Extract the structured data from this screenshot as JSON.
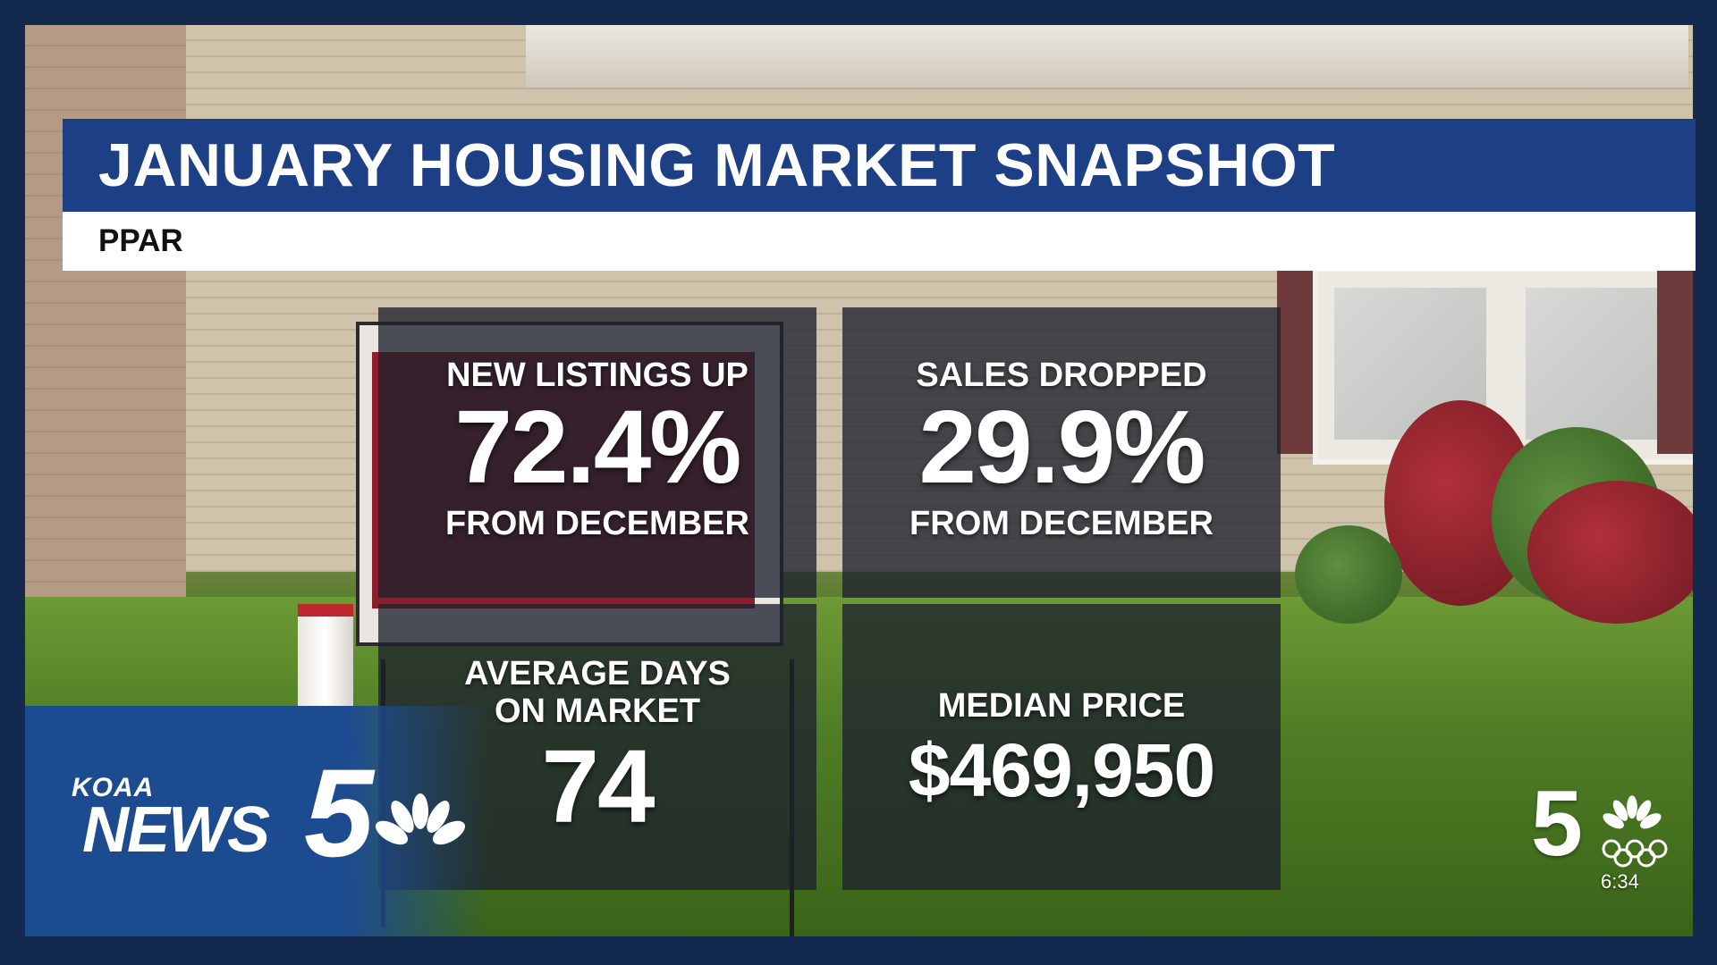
{
  "title": "JANUARY HOUSING MARKET SNAPSHOT",
  "source": "PPAR",
  "stats": [
    {
      "label": "NEW LISTINGS UP",
      "value": "72.4%",
      "sublabel": "FROM DECEMBER"
    },
    {
      "label": "SALES DROPPED",
      "value": "29.9%",
      "sublabel": "FROM DECEMBER"
    },
    {
      "label_line1": "AVERAGE DAYS",
      "label_line2": "ON MARKET",
      "value": "74"
    },
    {
      "label": "MEDIAN PRICE",
      "value": "$469,950"
    }
  ],
  "logo": {
    "station": "KOAA",
    "brand": "NEWS",
    "number": "5"
  },
  "bug": {
    "channel": "5",
    "time": "6:34"
  },
  "colors": {
    "title_bar": "#1d3f86",
    "subtitle_bar": "#ffffff",
    "panel": "#1e212d",
    "logo_blue": "#1d4b8f"
  }
}
